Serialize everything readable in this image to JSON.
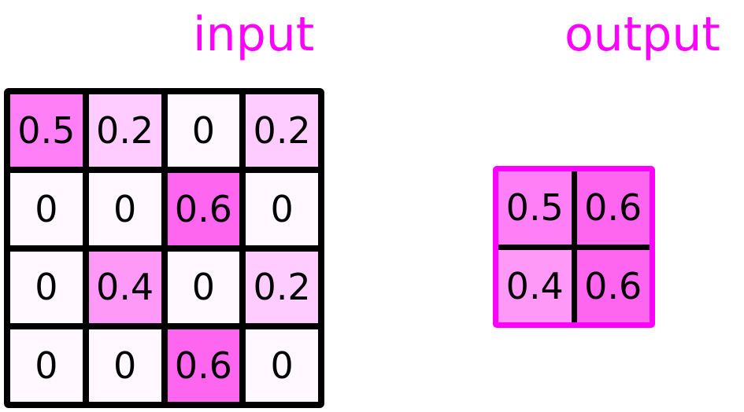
{
  "titles": {
    "input": "input",
    "output": "output"
  },
  "colors": {
    "title": "#ff00ff",
    "border": "#000000",
    "output_border": "#ff00ff"
  },
  "input": [
    [
      "0.5",
      "0.2",
      "0",
      "0.2"
    ],
    [
      "0",
      "0",
      "0.6",
      "0"
    ],
    [
      "0",
      "0.4",
      "0",
      "0.2"
    ],
    [
      "0",
      "0",
      "0.6",
      "0"
    ]
  ],
  "output": [
    [
      "0.5",
      "0.6"
    ],
    [
      "0.4",
      "0.6"
    ]
  ],
  "value_colors": {
    "0": "#fff8ff",
    "0.2": "#ffccff",
    "0.4": "#ff99f8",
    "0.5": "#ff80f6",
    "0.6": "#ff66f0"
  }
}
